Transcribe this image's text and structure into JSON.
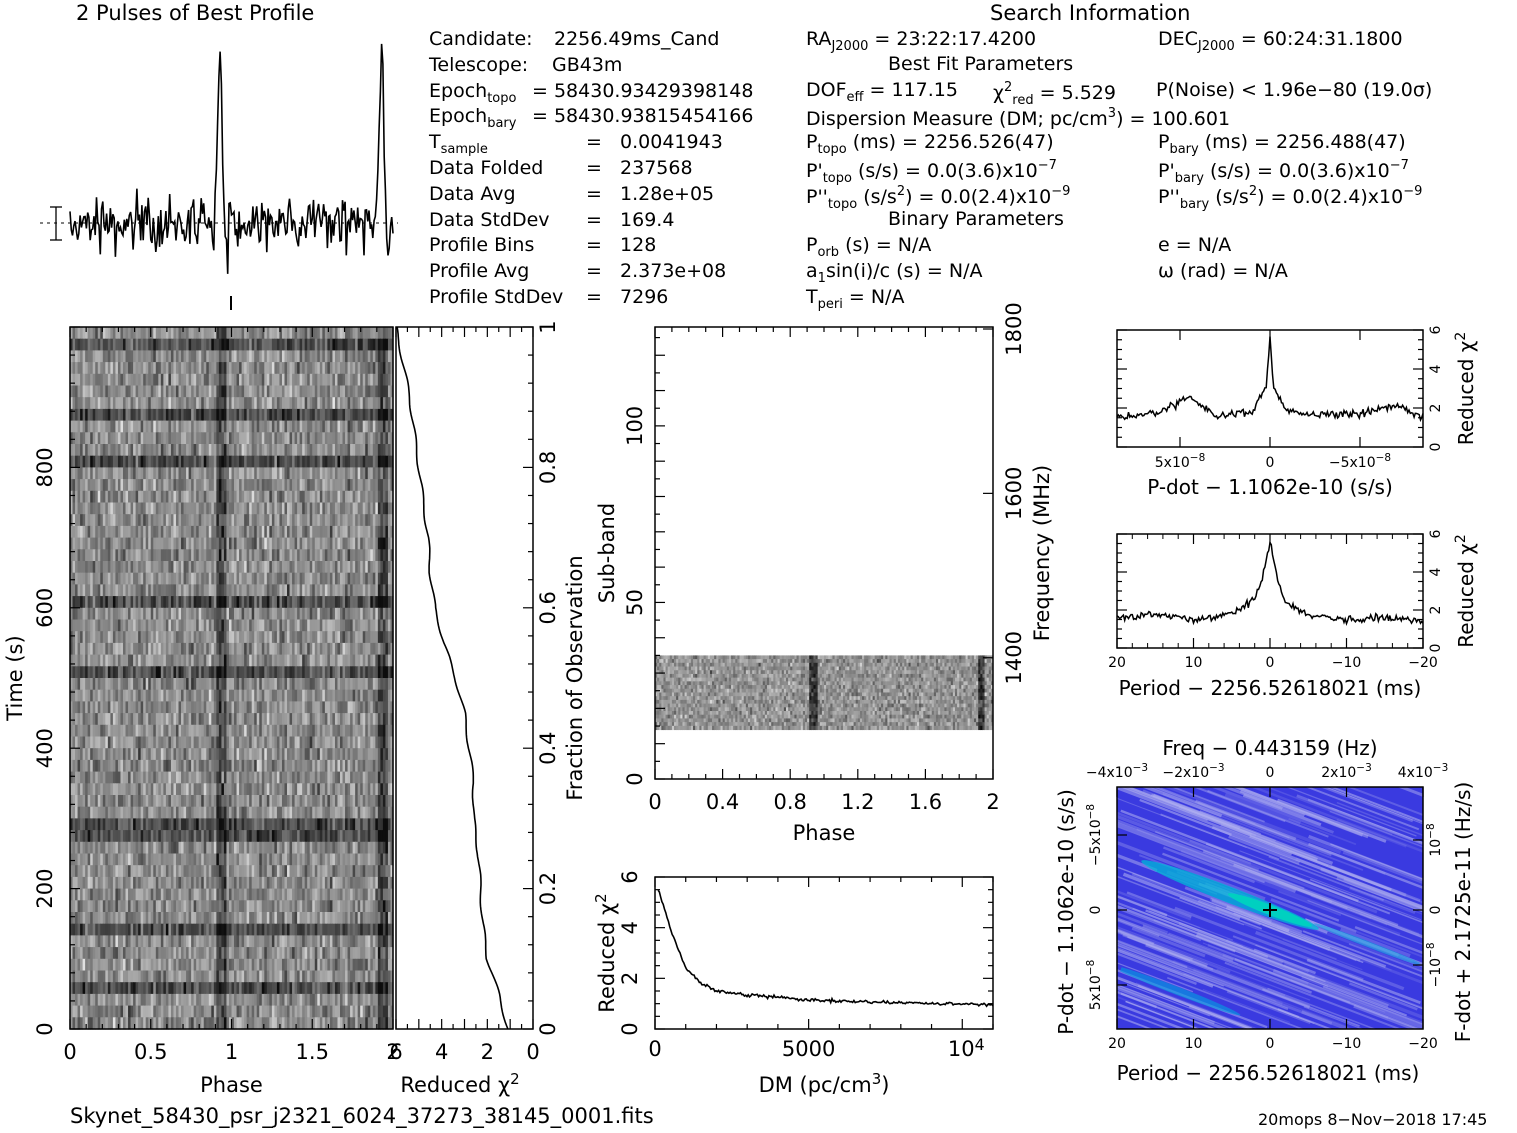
{
  "header": {
    "profile_title": "2 Pulses of Best Profile",
    "search_title": "Search Information",
    "best_fit_title": "Best Fit Parameters",
    "binary_title": "Binary Parameters"
  },
  "info_left": [
    {
      "label": "Candidate:",
      "value": "2256.49ms_Cand"
    },
    {
      "label": "Telescope:",
      "value": "GB43m"
    },
    {
      "label": "Epoch",
      "sub": "topo",
      "value": "= 58430.93429398148"
    },
    {
      "label": "Epoch",
      "sub": "bary",
      "value": "= 58430.93815454166"
    },
    {
      "label": "T",
      "sub": "sample",
      "value": "=   0.0041943"
    },
    {
      "label": "Data Folded",
      "value": "=   237568"
    },
    {
      "label": "Data Avg",
      "value": "=   1.28e+05"
    },
    {
      "label": "Data StdDev",
      "value": "=   169.4"
    },
    {
      "label": "Profile Bins",
      "value": "=   128"
    },
    {
      "label": "Profile Avg",
      "value": "=   2.373e+08"
    },
    {
      "label": "Profile StdDev",
      "value": "=   7296"
    }
  ],
  "search": {
    "ra_label": "RA",
    "ra_sub": "J2000",
    "ra_value": " = 23:22:17.4200",
    "dec_label": "DEC",
    "dec_sub": "J2000",
    "dec_value": " = 60:24:31.1800",
    "dof_label": "DOF",
    "dof_sub": "eff",
    "dof_value": " = 117.15",
    "chi_label": "χ",
    "chi_sup": "2",
    "chi_sub": "red",
    "chi_value": " = 5.529",
    "pnoise": "P(Noise) < 1.96e−80   (19.0σ)",
    "dm": "Dispersion Measure (DM; pc/cm",
    "dm_sup": "3",
    "dm_value": ") = 100.601",
    "ptopo": "P",
    "ptopo_sub": "topo",
    "ptopo_value": " (ms) =  2256.526(47)",
    "pbary": "P",
    "pbary_sub": "bary",
    "pbary_value": " (ms) =  2256.488(47)",
    "pdtopo": "P'",
    "pdtopo_sub": "topo",
    "pdtopo_value": " (s/s) = 0.0(3.6)x10",
    "pdtopo_exp": "−7",
    "pdbary": "P'",
    "pdbary_sub": "bary",
    "pdbary_value": " (s/s) = 0.0(3.6)x10",
    "pdbary_exp": "−7",
    "pddtopo": "P''",
    "pddtopo_sub": "topo",
    "pddtopo_value": " (s/s",
    "pddtopo_sup": "2",
    "pddtopo_value2": ") = 0.0(2.4)x10",
    "pddtopo_exp": "−9",
    "pddbary": "P''",
    "pddbary_sub": "bary",
    "pddbary_value": " (s/s",
    "pddbary_sup": "2",
    "pddbary_value2": ") = 0.0(2.4)x10",
    "pddbary_exp": "−9",
    "porb": "P",
    "porb_sub": "orb",
    "porb_value": " (s) = N/A",
    "ecc": "e = N/A",
    "asini": "a",
    "asini_sub": "1",
    "asini_value": "sin(i)/c (s) = N/A",
    "omega": "ω (rad) = N/A",
    "tperi": "T",
    "tperi_sub": "peri",
    "tperi_value": " = N/A"
  },
  "footer": {
    "filename": "Skynet_58430_psr_j2321_6024_37273_38145_0001.fits",
    "stamp": "20mops   8−Nov−2018 17:45"
  },
  "chart_data": [
    {
      "type": "line",
      "title": "2 Pulses of Best Profile",
      "x_range": [
        0,
        2
      ],
      "pulse_phases": [
        0.93,
        1.93
      ],
      "note_values": "profile amplitude unlabeled"
    },
    {
      "type": "heatmap",
      "name": "time-phase",
      "xlabel": "Phase",
      "ylabel": "Time (s)",
      "xlim": [
        0,
        2
      ],
      "ylim": [
        0,
        1000
      ],
      "x_ticks": [
        "0",
        "0.5",
        "1",
        "1.5",
        "2"
      ],
      "y_ticks": [
        "0",
        "200",
        "400",
        "600",
        "800"
      ],
      "pulse_phases": [
        0.93,
        1.93
      ],
      "colormap": "gray"
    },
    {
      "type": "line",
      "name": "reduced-chi2-vs-fraction",
      "xlabel": "Reduced χ2",
      "ylabel": "Fraction of Observation",
      "xlim": [
        6,
        0
      ],
      "ylim": [
        0,
        1
      ],
      "x_ticks": [
        "6",
        "4",
        "2",
        "0"
      ],
      "y_ticks": [
        "0",
        "0.2",
        "0.4",
        "0.6",
        "0.8",
        "1"
      ],
      "fraction": [
        0.0,
        0.05,
        0.1,
        0.15,
        0.2,
        0.25,
        0.3,
        0.35,
        0.4,
        0.45,
        0.5,
        0.55,
        0.6,
        0.65,
        0.7,
        0.75,
        0.8,
        0.85,
        0.9,
        0.95,
        1.0
      ],
      "chi2": [
        1.1,
        1.5,
        2.0,
        2.2,
        2.3,
        2.4,
        2.6,
        2.6,
        2.8,
        3.0,
        3.4,
        3.9,
        4.3,
        4.5,
        4.6,
        4.8,
        5.0,
        5.2,
        5.4,
        5.7,
        6.0
      ]
    },
    {
      "type": "heatmap",
      "name": "subband-phase",
      "xlabel": "Phase",
      "ylabel": "Sub-band",
      "y2label": "Frequency (MHz)",
      "xlim": [
        0,
        2
      ],
      "ylim": [
        0,
        128
      ],
      "x_ticks": [
        "0",
        "0.4",
        "0.8",
        "1.2",
        "1.6",
        "2"
      ],
      "y_ticks": [
        "0",
        "50",
        "100"
      ],
      "y2_ticks": [
        "1400",
        "1600",
        "1800"
      ],
      "filled_subbands": [
        14,
        35
      ],
      "pulse_phases": [
        0.93,
        1.93
      ],
      "colormap": "gray"
    },
    {
      "type": "line",
      "name": "dm-chi2",
      "xlabel": "DM (pc/cm3)",
      "ylabel": "Reduced χ2",
      "xlim": [
        0,
        11000
      ],
      "ylim": [
        0,
        6
      ],
      "x_ticks": [
        "0",
        "5000",
        "10"
      ],
      "x_tick_exp": "4",
      "y_ticks": [
        "0",
        "2",
        "4",
        "6"
      ],
      "x": [
        100,
        300,
        600,
        1000,
        1500,
        2000,
        3000,
        4000,
        5000,
        6000,
        7000,
        8000,
        9000,
        10000,
        11000
      ],
      "y": [
        5.5,
        4.8,
        3.6,
        2.4,
        1.8,
        1.5,
        1.35,
        1.25,
        1.15,
        1.1,
        1.05,
        1.05,
        1.0,
        1.0,
        0.95
      ]
    },
    {
      "type": "line",
      "name": "pdot-chi2",
      "xlabel": "P-dot − 1.1062e-10 (s/s)",
      "ylabel": "Reduced χ2",
      "xlim": [
        8.5e-08,
        -8.5e-08
      ],
      "ylim": [
        0,
        6
      ],
      "x_ticks": [
        "5x10",
        "0",
        "−5x10"
      ],
      "x_tick_exp": "−8",
      "y_ticks": [
        "0",
        "2",
        "4",
        "6"
      ],
      "x": [
        8.5e-08,
        6e-08,
        4.5e-08,
        3e-08,
        1e-08,
        2e-09,
        0,
        -2e-09,
        -1e-08,
        -3e-08,
        -5e-08,
        -7e-08,
        -8.5e-08
      ],
      "y": [
        1.5,
        1.8,
        2.6,
        1.6,
        1.8,
        3.2,
        5.6,
        3.0,
        1.8,
        1.6,
        1.7,
        2.1,
        1.5
      ]
    },
    {
      "type": "line",
      "name": "period-chi2",
      "xlabel": "Period − 2256.52618021 (ms)",
      "ylabel": "Reduced χ2",
      "xlim": [
        20,
        -20
      ],
      "ylim": [
        0,
        6
      ],
      "x_ticks": [
        "20",
        "10",
        "0",
        "−10",
        "−20"
      ],
      "y_ticks": [
        "0",
        "2",
        "4",
        "6"
      ],
      "x": [
        20,
        15,
        10,
        5,
        2,
        1,
        0,
        -1,
        -2,
        -5,
        -10,
        -15,
        -20
      ],
      "y": [
        1.6,
        1.8,
        1.5,
        1.8,
        2.6,
        3.6,
        5.6,
        3.6,
        2.4,
        1.7,
        1.5,
        1.6,
        1.4
      ]
    },
    {
      "type": "heatmap",
      "name": "period-pdot",
      "xlabel": "Period − 2256.52618021 (ms)",
      "ylabel": "P-dot − 1.1062e-10 (s/s)",
      "x2label": "Freq − 0.443159 (Hz)",
      "y2label": "F-dot + 2.1725e-11 (Hz/s)",
      "xlim": [
        20,
        -20
      ],
      "x_ticks": [
        "20",
        "10",
        "0",
        "−10",
        "−20"
      ],
      "x2_ticks": [
        "−4x10",
        "−2x10",
        "0",
        "2x10",
        "4x10"
      ],
      "x2_tick_exp": "−3",
      "y_ticks": [
        "−5x10",
        "0",
        "5x10"
      ],
      "y_tick_exp": "−8",
      "y2_ticks": [
        "10",
        "0",
        "−10"
      ],
      "y2_tick_exp": "−8",
      "colormap": "blue-white",
      "colors": {
        "base": "#3a3ae0",
        "peak": "#00d0c0",
        "light": "#b0b0f0"
      }
    }
  ]
}
